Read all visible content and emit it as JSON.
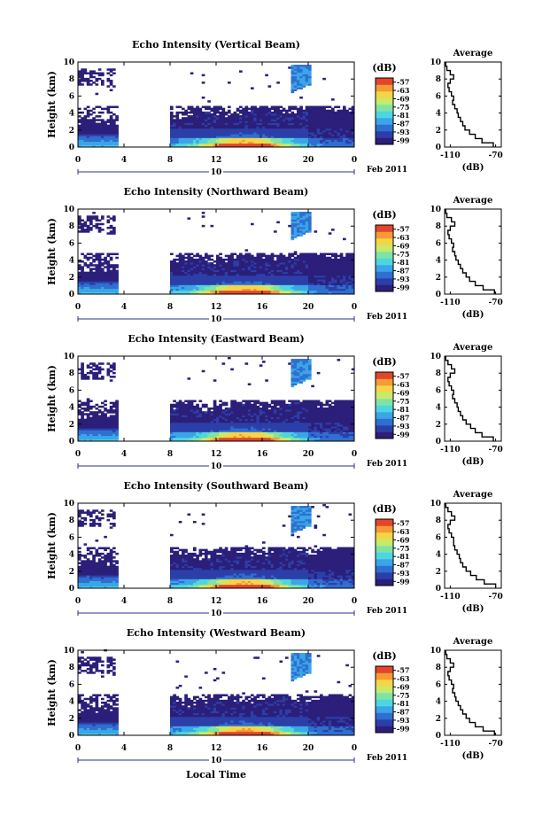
{
  "chart_data": {
    "type": "heatmap",
    "x_unit_label": "Local Time",
    "date_day": "10",
    "date_label": "Feb 2011",
    "x_ticks": [
      "0",
      "4",
      "8",
      "12",
      "16",
      "20",
      "0"
    ],
    "xlim": [
      0,
      24
    ],
    "y_label": "Height (km)",
    "y_ticks": [
      "0",
      "2",
      "4",
      "6",
      "8",
      "10"
    ],
    "ylim": [
      0,
      10
    ],
    "colorbar": {
      "unit": "(dB)",
      "tick_labels": [
        "-57",
        "-63",
        "-69",
        "-75",
        "-81",
        "-87",
        "-93",
        "-99"
      ],
      "range": [
        -102,
        -54
      ],
      "colors": [
        "#2b1f7a",
        "#2c3fa8",
        "#2f6fd0",
        "#3aa5e8",
        "#4ed6e0",
        "#7fe3a6",
        "#c8ea6a",
        "#f5d548",
        "#f59a36",
        "#e2452c"
      ]
    },
    "panels": [
      {
        "title": "Echo Intensity (Vertical Beam)",
        "profile_title": "Average",
        "profile_xlabel": "(dB)",
        "profile_xticks": [
          "-110",
          "-70"
        ],
        "profile_xlim": [
          -115,
          -65
        ],
        "profile": {
          "height": [
            0,
            0.5,
            1,
            1.5,
            2,
            2.5,
            3,
            3.5,
            4,
            4.5,
            5,
            5.5,
            6,
            6.5,
            7,
            7.5,
            8,
            8.5,
            9,
            9.5
          ],
          "value": [
            -72,
            -82,
            -88,
            -93,
            -97,
            -99,
            -101,
            -103,
            -104,
            -106,
            -108,
            -107,
            -109,
            -111,
            -112,
            -110,
            -107,
            -110,
            -113,
            -114
          ]
        }
      },
      {
        "title": "Echo Intensity (Northward Beam)",
        "profile_title": "Average",
        "profile_xlabel": "(dB)",
        "profile_xticks": [
          "-110",
          "-70"
        ],
        "profile_xlim": [
          -115,
          -65
        ],
        "profile": {
          "height": [
            0,
            0.5,
            1,
            1.5,
            2,
            2.5,
            3,
            3.5,
            4,
            4.5,
            5,
            5.5,
            6,
            6.5,
            7,
            7.5,
            8,
            8.5,
            9,
            9.5
          ],
          "value": [
            -71,
            -81,
            -88,
            -93,
            -96,
            -99,
            -101,
            -103,
            -105,
            -106,
            -108,
            -107,
            -109,
            -111,
            -112,
            -110,
            -106,
            -109,
            -113,
            -114
          ]
        }
      },
      {
        "title": "Echo Intensity (Eastward Beam)",
        "profile_title": "Average",
        "profile_xlabel": "(dB)",
        "profile_xticks": [
          "-110",
          "-70"
        ],
        "profile_xlim": [
          -115,
          -65
        ],
        "profile": {
          "height": [
            0,
            0.5,
            1,
            1.5,
            2,
            2.5,
            3,
            3.5,
            4,
            4.5,
            5,
            5.5,
            6,
            6.5,
            7,
            7.5,
            8,
            8.5,
            9,
            9.5
          ],
          "value": [
            -72,
            -82,
            -88,
            -92,
            -96,
            -99,
            -101,
            -103,
            -104,
            -106,
            -108,
            -107,
            -109,
            -111,
            -112,
            -110,
            -106,
            -109,
            -112,
            -114
          ]
        }
      },
      {
        "title": "Echo Intensity (Southward Beam)",
        "profile_title": "Average",
        "profile_xlabel": "(dB)",
        "profile_xticks": [
          "-110",
          "-70"
        ],
        "profile_xlim": [
          -115,
          -65
        ],
        "profile": {
          "height": [
            0,
            0.5,
            1,
            1.5,
            2,
            2.5,
            3,
            3.5,
            4,
            4.5,
            5,
            5.5,
            6,
            6.5,
            7,
            7.5,
            8,
            8.5,
            9,
            9.5
          ],
          "value": [
            -70,
            -80,
            -87,
            -92,
            -96,
            -99,
            -101,
            -102,
            -104,
            -106,
            -107,
            -107,
            -109,
            -111,
            -112,
            -110,
            -106,
            -109,
            -112,
            -114
          ]
        }
      },
      {
        "title": "Echo Intensity (Westward Beam)",
        "profile_title": "Average",
        "profile_xlabel": "(dB)",
        "profile_xticks": [
          "-110",
          "-70"
        ],
        "profile_xlim": [
          -115,
          -65
        ],
        "profile": {
          "height": [
            0,
            0.5,
            1,
            1.5,
            2,
            2.5,
            3,
            3.5,
            4,
            4.5,
            5,
            5.5,
            6,
            6.5,
            7,
            7.5,
            8,
            8.5,
            9,
            9.5
          ],
          "value": [
            -71,
            -81,
            -88,
            -93,
            -96,
            -99,
            -101,
            -103,
            -105,
            -106,
            -108,
            -107,
            -109,
            -111,
            -112,
            -110,
            -107,
            -110,
            -113,
            -114
          ]
        }
      }
    ]
  }
}
